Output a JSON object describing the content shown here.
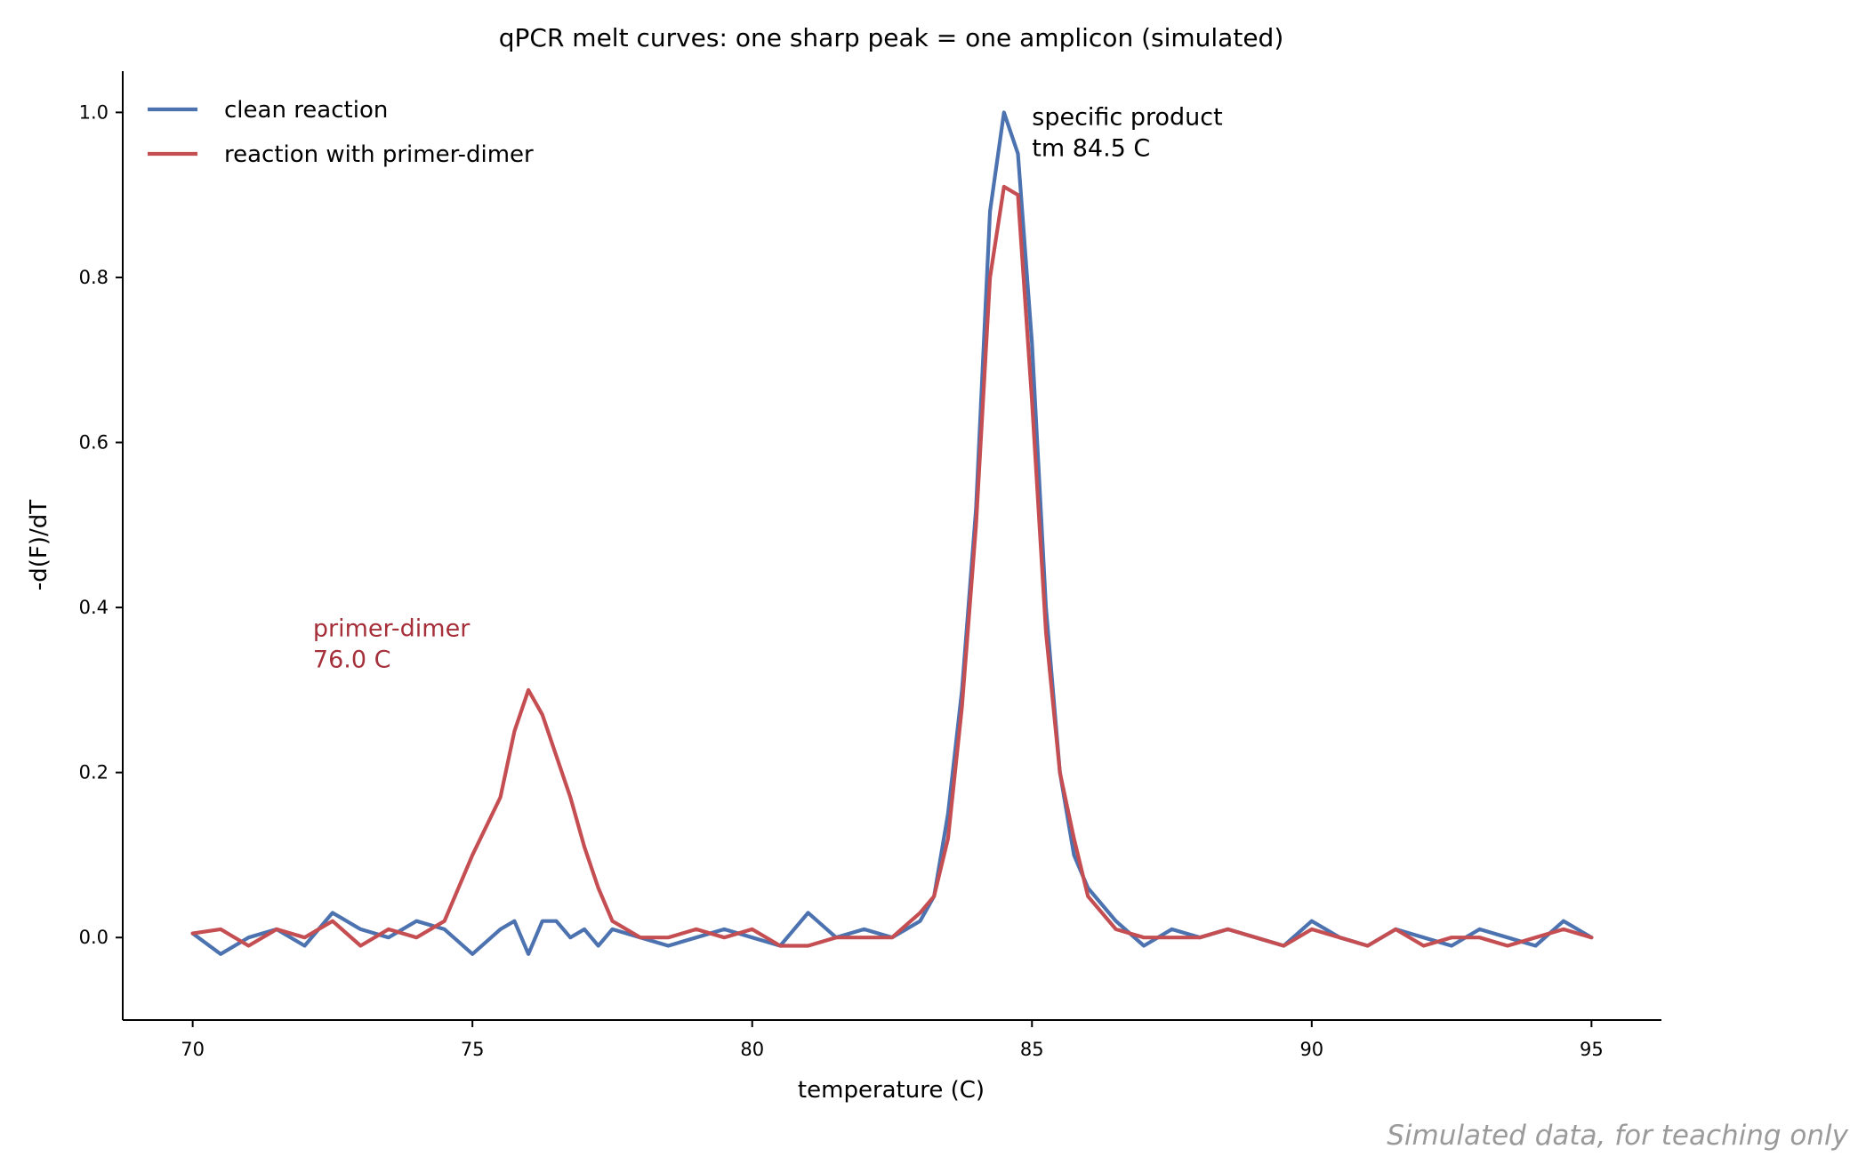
{
  "chart_data": {
    "type": "line",
    "title": "qPCR melt curves: one sharp peak = one amplicon (simulated)",
    "xlabel": "temperature (C)",
    "ylabel": "-d(F)/dT",
    "xlim": [
      68.75,
      96.25
    ],
    "ylim": [
      -0.1,
      1.05
    ],
    "xticks": [
      70,
      75,
      80,
      85,
      90,
      95
    ],
    "yticks": [
      0.0,
      0.2,
      0.4,
      0.6,
      0.8,
      1.0
    ],
    "xtick_labels": [
      "70",
      "75",
      "80",
      "85",
      "90",
      "95"
    ],
    "ytick_labels": [
      "0.0",
      "0.2",
      "0.4",
      "0.6",
      "0.8",
      "1.0"
    ],
    "grid": false,
    "legend_position": "top-left",
    "x": [
      70.0,
      70.5,
      71.0,
      71.5,
      72.0,
      72.5,
      73.0,
      73.5,
      74.0,
      74.5,
      75.0,
      75.5,
      75.75,
      76.0,
      76.25,
      76.5,
      76.75,
      77.0,
      77.25,
      77.5,
      78.0,
      78.5,
      79.0,
      79.5,
      80.0,
      80.5,
      81.0,
      81.5,
      82.0,
      82.5,
      83.0,
      83.25,
      83.5,
      83.75,
      84.0,
      84.25,
      84.5,
      84.75,
      85.0,
      85.25,
      85.5,
      85.75,
      86.0,
      86.5,
      87.0,
      87.5,
      88.0,
      88.5,
      89.0,
      89.5,
      90.0,
      90.5,
      91.0,
      91.5,
      92.0,
      92.5,
      93.0,
      93.5,
      94.0,
      94.5,
      95.0
    ],
    "series": [
      {
        "name": "clean reaction",
        "color": "#4c72b0",
        "values": [
          0.005,
          -0.02,
          0.0,
          0.01,
          -0.01,
          0.03,
          0.01,
          0.0,
          0.02,
          0.01,
          -0.02,
          0.01,
          0.02,
          -0.02,
          0.02,
          0.02,
          0.0,
          0.01,
          -0.01,
          0.01,
          0.0,
          -0.01,
          0.0,
          0.01,
          0.0,
          -0.01,
          0.03,
          0.0,
          0.01,
          0.0,
          0.02,
          0.05,
          0.15,
          0.3,
          0.52,
          0.88,
          1.0,
          0.95,
          0.72,
          0.4,
          0.2,
          0.1,
          0.06,
          0.02,
          -0.01,
          0.01,
          0.0,
          0.01,
          0.0,
          -0.01,
          0.02,
          0.0,
          -0.01,
          0.01,
          0.0,
          -0.01,
          0.01,
          0.0,
          -0.01,
          0.02,
          0.0
        ]
      },
      {
        "name": "reaction with primer-dimer",
        "color": "#c44e52",
        "values": [
          0.005,
          0.01,
          -0.01,
          0.01,
          0.0,
          0.02,
          -0.01,
          0.01,
          0.0,
          0.02,
          0.1,
          0.17,
          0.25,
          0.3,
          0.27,
          0.22,
          0.17,
          0.11,
          0.06,
          0.02,
          0.0,
          0.0,
          0.01,
          0.0,
          0.01,
          -0.01,
          -0.01,
          0.0,
          0.0,
          0.0,
          0.03,
          0.05,
          0.12,
          0.28,
          0.5,
          0.8,
          0.91,
          0.9,
          0.65,
          0.37,
          0.2,
          0.12,
          0.05,
          0.01,
          0.0,
          0.0,
          0.0,
          0.01,
          0.0,
          -0.01,
          0.01,
          0.0,
          -0.01,
          0.01,
          -0.01,
          0.0,
          0.0,
          -0.01,
          0.0,
          0.01,
          0.0
        ]
      }
    ],
    "annotations": [
      {
        "lines": [
          "specific product",
          "tm 84.5 C"
        ],
        "x": 85.0,
        "y": 0.985,
        "color": "#000000"
      },
      {
        "lines": [
          "primer-dimer",
          "76.0 C"
        ],
        "x": 72.15,
        "y": 0.365,
        "color": "#a6303a"
      }
    ]
  },
  "footer_note": "Simulated data, for teaching only"
}
